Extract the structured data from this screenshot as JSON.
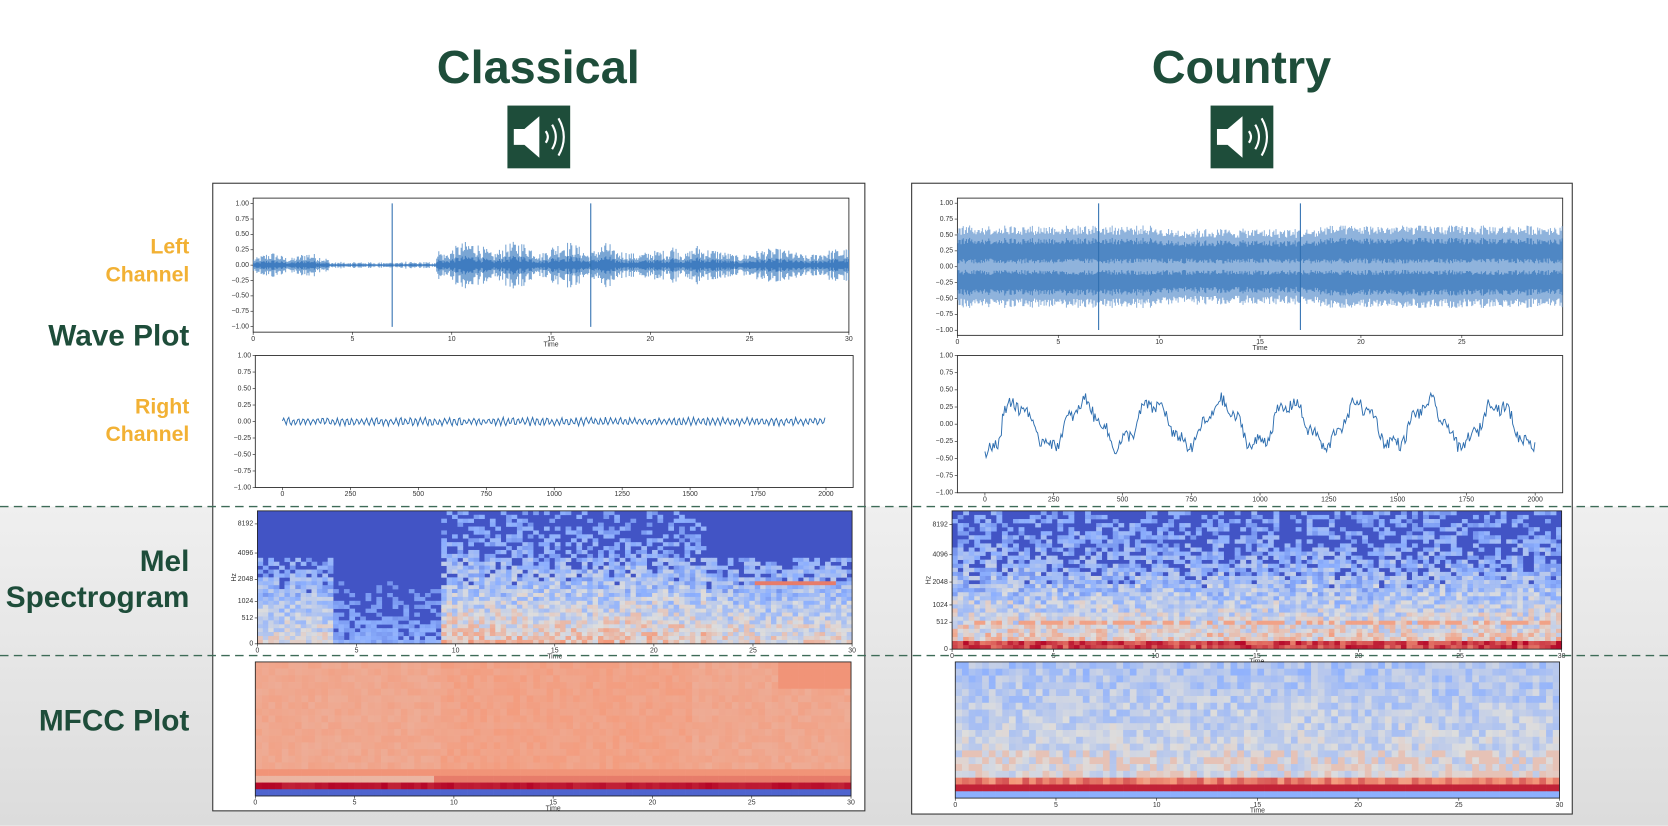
{
  "row_labels": {
    "left_channel": [
      "Left",
      "Channel"
    ],
    "wave_plot": "Wave Plot",
    "right_channel": [
      "Right",
      "Channel"
    ],
    "mel": [
      "Mel",
      "Spectrogram"
    ],
    "mfcc": "MFCC Plot"
  },
  "columns": [
    {
      "title": "Classical",
      "wave_left": {
        "xlim": [
          0,
          30
        ],
        "xticks": [
          0,
          5,
          10,
          15,
          20,
          25,
          30
        ],
        "xlabel": "Time",
        "ylim": [
          -1.09,
          1.09
        ],
        "yticks": [
          {
            "value": 1,
            "label": "1.00"
          },
          {
            "value": 0.75,
            "label": "0.75"
          },
          {
            "value": 0.5,
            "label": "0.50"
          },
          {
            "value": 0.25,
            "label": "0.25"
          },
          {
            "value": 0,
            "label": "0.00"
          },
          {
            "value": -0.25,
            "label": "−0.25"
          },
          {
            "value": -0.5,
            "label": "−0.50"
          },
          {
            "value": -0.75,
            "label": "−0.75"
          },
          {
            "value": -1,
            "label": "−1.00"
          }
        ]
      },
      "wave_right": {
        "xlim": [
          -100,
          2100
        ],
        "xticks": [
          0,
          250,
          500,
          750,
          1000,
          1250,
          1500,
          1750,
          2000
        ],
        "ylim": [
          -1,
          1
        ],
        "yticks": [
          {
            "value": 1,
            "label": "1.00"
          },
          {
            "value": 0.75,
            "label": "0.75"
          },
          {
            "value": 0.5,
            "label": "0.50"
          },
          {
            "value": 0.25,
            "label": "0.25"
          },
          {
            "value": 0,
            "label": "0.00"
          },
          {
            "value": -0.25,
            "label": "−0.25"
          },
          {
            "value": -0.5,
            "label": "−0.50"
          },
          {
            "value": -0.75,
            "label": "−0.75"
          },
          {
            "value": -1,
            "label": "−1.00"
          }
        ]
      },
      "mel": {
        "xlim": [
          0,
          30
        ],
        "xticks": [
          0,
          5,
          10,
          15,
          20,
          25,
          30
        ],
        "xlabel": "Time",
        "ylim": [
          0,
          11025
        ],
        "yscale": "mel",
        "yticks": [
          0,
          512,
          1024,
          2048,
          4096,
          8192
        ],
        "ylabel": "Hz"
      },
      "mfcc": {
        "xlim": [
          0,
          30
        ],
        "xticks": [
          0,
          5,
          10,
          15,
          20,
          25,
          30
        ],
        "xlabel": "Time"
      }
    },
    {
      "title": "Country",
      "wave_left": {
        "xlim": [
          0,
          30
        ],
        "xticks": [
          0,
          5,
          10,
          15,
          20,
          25
        ],
        "xlabel": "Time",
        "ylim": [
          -1.08,
          1.08
        ],
        "yticks": [
          {
            "value": 1,
            "label": "1.00"
          },
          {
            "value": 0.75,
            "label": "0.75"
          },
          {
            "value": 0.5,
            "label": "0.50"
          },
          {
            "value": 0.25,
            "label": "0.25"
          },
          {
            "value": 0,
            "label": "0.00"
          },
          {
            "value": -0.25,
            "label": "−0.25"
          },
          {
            "value": -0.5,
            "label": "−0.50"
          },
          {
            "value": -0.75,
            "label": "−0.75"
          },
          {
            "value": -1,
            "label": "−1.00"
          }
        ]
      },
      "wave_right": {
        "xlim": [
          -100,
          2100
        ],
        "xticks": [
          0,
          250,
          500,
          750,
          1000,
          1250,
          1500,
          1750,
          2000
        ],
        "ylim": [
          -1,
          1
        ],
        "yticks": [
          {
            "value": 1,
            "label": "1.00"
          },
          {
            "value": 0.75,
            "label": "0.75"
          },
          {
            "value": 0.5,
            "label": "0.50"
          },
          {
            "value": 0.25,
            "label": "0.25"
          },
          {
            "value": 0,
            "label": "0.00"
          },
          {
            "value": -0.25,
            "label": "−0.25"
          },
          {
            "value": -0.5,
            "label": "−0.50"
          },
          {
            "value": -0.75,
            "label": "−0.75"
          },
          {
            "value": -1,
            "label": "−1.00"
          }
        ]
      },
      "mel": {
        "xlim": [
          0,
          30
        ],
        "xticks": [
          0,
          5,
          10,
          15,
          20,
          25,
          30
        ],
        "xlabel": "Time",
        "ylim": [
          0,
          11025
        ],
        "yscale": "mel",
        "yticks": [
          0,
          512,
          1024,
          2048,
          4096,
          8192
        ],
        "ylabel": "Hz"
      },
      "mfcc": {
        "xlim": [
          0,
          30
        ],
        "xticks": [
          0,
          5,
          10,
          15,
          20,
          25,
          30
        ],
        "xlabel": "Time"
      }
    }
  ]
}
